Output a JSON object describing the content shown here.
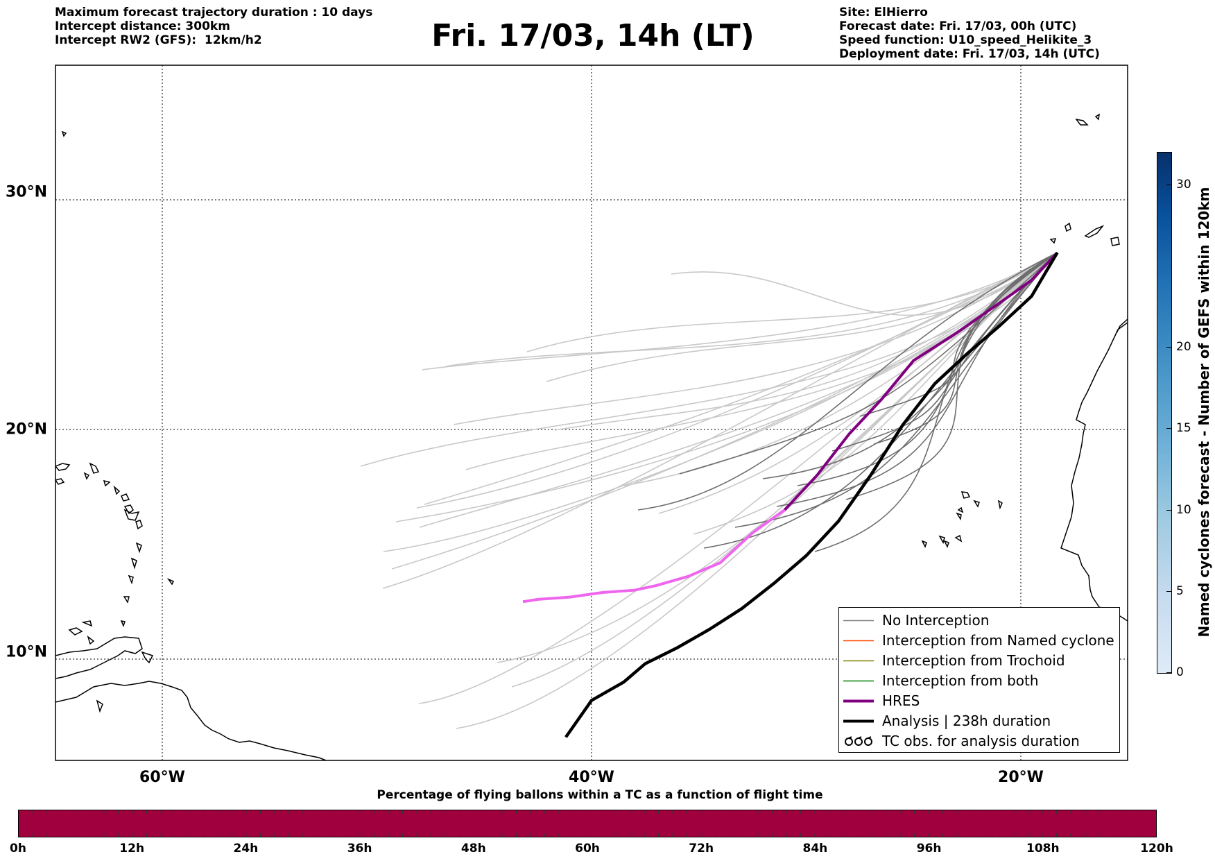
{
  "header": {
    "title": "Fri. 17/03, 14h (LT)",
    "left_lines": [
      "Maximum forecast trajectory duration : 10 days",
      "Intercept distance: 300km",
      "Intercept RW2 (GFS):  12km/h2"
    ],
    "right_lines": [
      "Site: ElHierro",
      "Forecast date: Fri. 17/03, 00h (UTC)",
      "Speed function: U10_speed_Helikite_3",
      "Deployment date: Fri. 17/03, 14h (UTC)"
    ]
  },
  "map": {
    "lon_range": [
      -65,
      -15
    ],
    "lat_range": [
      5,
      35
    ],
    "x_ticks": [
      {
        "value": -60,
        "label": "60°W"
      },
      {
        "value": -40,
        "label": "40°W"
      },
      {
        "value": -20,
        "label": "20°W"
      }
    ],
    "y_ticks": [
      {
        "value": 10,
        "label": "10°N"
      },
      {
        "value": 20,
        "label": "20°N"
      },
      {
        "value": 30,
        "label": "30°N"
      }
    ],
    "grid": true,
    "grid_style": "dotted"
  },
  "chart_data": {
    "type": "line",
    "legend_position": "lower-right",
    "series": [
      {
        "name": "HRES",
        "color": "#800080",
        "points": [
          [
            -43.2,
            12.5
          ],
          [
            -42.5,
            12.6
          ],
          [
            -41,
            12.7
          ],
          [
            -39.5,
            12.9
          ],
          [
            -38,
            13.0
          ],
          [
            -37,
            13.2
          ],
          [
            -35.5,
            13.6
          ],
          [
            -34,
            14.2
          ],
          [
            -32.5,
            15.5
          ],
          [
            -31,
            16.5
          ],
          [
            -29.5,
            18.0
          ],
          [
            -28,
            19.8
          ],
          [
            -26.5,
            21.3
          ],
          [
            -25,
            23.0
          ],
          [
            -23,
            24.2
          ],
          [
            -21,
            25.5
          ],
          [
            -19.5,
            26.5
          ],
          [
            -18.3,
            27.7
          ]
        ]
      },
      {
        "name": "Analysis | 238h duration",
        "color": "#000000",
        "points": [
          [
            -41.2,
            6.6
          ],
          [
            -40,
            8.2
          ],
          [
            -38.5,
            9.0
          ],
          [
            -37.5,
            9.8
          ],
          [
            -36,
            10.5
          ],
          [
            -34.5,
            11.3
          ],
          [
            -33,
            12.2
          ],
          [
            -31.5,
            13.3
          ],
          [
            -30,
            14.5
          ],
          [
            -28.5,
            16.0
          ],
          [
            -27,
            18.0
          ],
          [
            -25.5,
            20.2
          ],
          [
            -24,
            22.0
          ],
          [
            -22.5,
            23.3
          ],
          [
            -21,
            24.5
          ],
          [
            -19.5,
            25.8
          ],
          [
            -18.3,
            27.7
          ]
        ]
      }
    ],
    "ensemble": {
      "name": "No Interception",
      "color": "#7f7f7f"
    }
  },
  "legend": {
    "items": [
      {
        "label": "No Interception",
        "color": "#7f7f7f",
        "kind": "line-thin"
      },
      {
        "label": "Interception from Named cyclone",
        "color": "#ff4500",
        "kind": "line-thin"
      },
      {
        "label": "Interception from Trochoid",
        "color": "#808000",
        "kind": "line-thin"
      },
      {
        "label": "Interception from both",
        "color": "#008000",
        "kind": "line-thin"
      },
      {
        "label": "HRES",
        "color": "#800080",
        "kind": "line-thick"
      },
      {
        "label": "Analysis | 238h duration",
        "color": "#000000",
        "kind": "line-thick"
      },
      {
        "label": "TC obs. for analysis duration",
        "color": "#000000",
        "kind": "tc-symbol"
      }
    ]
  },
  "colorbar": {
    "label": "Named cyclones forecast - Number of GEFS within 120km",
    "ticks": [
      0,
      5,
      10,
      15,
      20,
      30
    ],
    "max": 32
  },
  "flight_bar": {
    "title": "Percentage of flying ballons within a TC as a function of flight time",
    "color": "#a0003d",
    "ticks": [
      "0h",
      "12h",
      "24h",
      "36h",
      "48h",
      "60h",
      "72h",
      "84h",
      "96h",
      "108h",
      "120h"
    ]
  }
}
